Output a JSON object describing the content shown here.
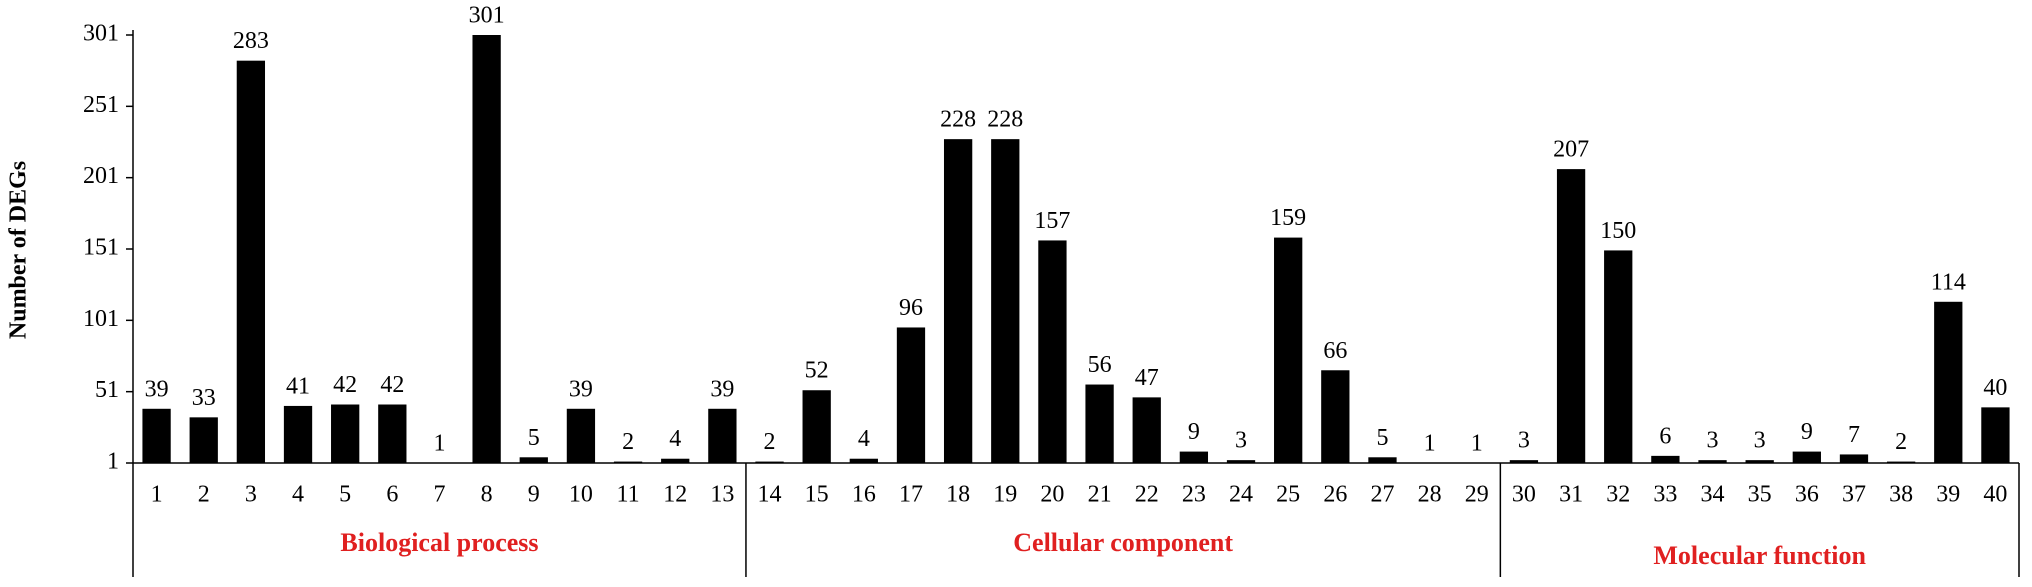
{
  "chart_data": {
    "type": "bar",
    "y_label": "Number of DEGs",
    "color": "#000000",
    "group_color": "#e02020",
    "ylim": [
      1,
      301
    ],
    "yticks": [
      1,
      51,
      101,
      151,
      201,
      251,
      301
    ],
    "groups": [
      {
        "name": "Biological process",
        "categories": [
          "1",
          "2",
          "3",
          "4",
          "5",
          "6",
          "7",
          "8",
          "9",
          "10",
          "11",
          "12",
          "13"
        ],
        "values": [
          39,
          33,
          283,
          41,
          42,
          42,
          1,
          301,
          5,
          39,
          2,
          4,
          39
        ]
      },
      {
        "name": "Cellular component",
        "categories": [
          "14",
          "15",
          "16",
          "17",
          "18",
          "19",
          "20",
          "21",
          "22",
          "23",
          "24",
          "25",
          "26",
          "27",
          "28",
          "29"
        ],
        "values": [
          2,
          52,
          4,
          96,
          228,
          228,
          157,
          56,
          47,
          9,
          3,
          159,
          66,
          5,
          1,
          1
        ]
      },
      {
        "name": "Molecular function",
        "categories": [
          "30",
          "31",
          "32",
          "33",
          "34",
          "35",
          "36",
          "37",
          "38",
          "39",
          "40"
        ],
        "values": [
          3,
          207,
          150,
          6,
          3,
          3,
          9,
          7,
          2,
          114,
          40
        ]
      }
    ]
  }
}
